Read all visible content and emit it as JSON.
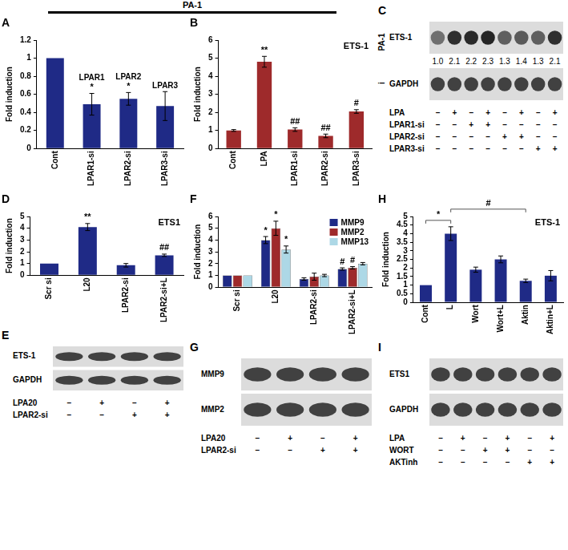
{
  "header": {
    "text": "PA-1"
  },
  "chart_data": [
    {
      "panel": "A",
      "type": "bar",
      "ylabel": "Fold induction",
      "categories": [
        "Cont",
        "LPAR1-si",
        "LPAR2-si",
        "LPAR3-si"
      ],
      "values": [
        1.0,
        0.49,
        0.55,
        0.47
      ],
      "errors": [
        0,
        0.12,
        0.07,
        0.16
      ],
      "color": "#1f2a86",
      "ylim": [
        0,
        1.2
      ],
      "yticks": [
        0,
        0.2,
        0.4,
        0.6,
        0.8,
        1,
        1.2
      ],
      "grid": false,
      "annotations": [
        {
          "category": "LPAR1-si",
          "text": "*"
        },
        {
          "category": "LPAR1-si",
          "text": "LPAR1"
        },
        {
          "category": "LPAR2-si",
          "text": "*"
        },
        {
          "category": "LPAR2-si",
          "text": "LPAR2"
        },
        {
          "category": "LPAR3-si",
          "text": "LPAR3"
        }
      ]
    },
    {
      "panel": "B",
      "type": "bar",
      "title": "ETS-1",
      "ylabel": "Fold induction",
      "categories": [
        "Cont",
        "LPA",
        "LPAR1-si",
        "LPAR2-si",
        "LPAR3-si"
      ],
      "values": [
        1.0,
        4.8,
        1.05,
        0.7,
        2.05
      ],
      "errors": [
        0.05,
        0.3,
        0.1,
        0.1,
        0.1
      ],
      "color": "#9e2a2b",
      "ylim": [
        0,
        6
      ],
      "yticks": [
        0,
        1,
        2,
        3,
        4,
        5,
        6
      ],
      "grid": false,
      "annotations": [
        {
          "category": "LPA",
          "text": "**"
        },
        {
          "category": "LPAR1-si",
          "text": "##"
        },
        {
          "category": "LPAR2-si",
          "text": "##"
        },
        {
          "category": "LPAR3-si",
          "text": "#"
        }
      ]
    },
    {
      "panel": "D",
      "type": "bar",
      "title": "ETS1",
      "ylabel": "Fold induction",
      "categories": [
        "Scr si",
        "L20",
        "LPAR2-si",
        "LPAR2-si+L"
      ],
      "values": [
        1.0,
        4.1,
        0.85,
        1.7
      ],
      "errors": [
        0,
        0.3,
        0.15,
        0.1
      ],
      "color": "#1f2a86",
      "ylim": [
        0,
        5
      ],
      "yticks": [
        0,
        1,
        2,
        3,
        4,
        5
      ],
      "grid": false,
      "annotations": [
        {
          "category": "L20",
          "text": "**"
        },
        {
          "category": "LPAR2-si+L",
          "text": "##"
        }
      ]
    },
    {
      "panel": "F",
      "type": "bar",
      "ylabel": "Fold induction",
      "categories": [
        "Scr si",
        "L20",
        "LPAR2-si",
        "LPAR2-si+L"
      ],
      "series": [
        {
          "name": "MMP9",
          "color": "#1f2a86",
          "values": [
            1,
            4.0,
            0.7,
            1.55
          ],
          "errors": [
            0,
            0.3,
            0.1,
            0.1
          ]
        },
        {
          "name": "MMP2",
          "color": "#9e2a2b",
          "values": [
            1,
            5.0,
            0.9,
            1.65
          ],
          "errors": [
            0,
            0.6,
            0.3,
            0.1
          ]
        },
        {
          "name": "MMP13",
          "color": "#add8e6",
          "values": [
            1,
            3.2,
            1.0,
            2.0
          ],
          "errors": [
            0,
            0.3,
            0.1,
            0.1
          ]
        }
      ],
      "ylim": [
        0,
        6
      ],
      "yticks": [
        0,
        1,
        2,
        3,
        4,
        5,
        6
      ],
      "grid": false,
      "legend": "top-right",
      "annotations": [
        {
          "category": "L20",
          "series": "MMP9",
          "text": "*"
        },
        {
          "category": "L20",
          "series": "MMP2",
          "text": "*"
        },
        {
          "category": "L20",
          "series": "MMP13",
          "text": "*"
        },
        {
          "category": "LPAR2-si+L",
          "series": "MMP9",
          "text": "#"
        },
        {
          "category": "LPAR2-si+L",
          "series": "MMP2",
          "text": "#"
        }
      ]
    },
    {
      "panel": "H",
      "type": "bar",
      "title": "ETS-1",
      "ylabel": "Fold induction",
      "categories": [
        "Cont",
        "L",
        "Wort",
        "Wort+L",
        "Aktin",
        "Aktin+L"
      ],
      "values": [
        1.0,
        4.0,
        1.9,
        2.5,
        1.25,
        1.55
      ],
      "errors": [
        0,
        0.4,
        0.15,
        0.2,
        0.1,
        0.3
      ],
      "color": "#1f2a86",
      "ylim": [
        0,
        5
      ],
      "yticks": [
        0,
        0.5,
        1,
        1.5,
        2,
        2.5,
        3,
        3.5,
        4,
        4.5,
        5
      ],
      "grid": false,
      "annotations": [
        {
          "from": "Cont",
          "to": "L",
          "text": "*"
        },
        {
          "from": "L",
          "to": "Aktin",
          "text": "#"
        }
      ]
    }
  ],
  "blots": [
    {
      "panel": "C",
      "side_labels": [
        "PA-1",
        "i"
      ],
      "bands": [
        {
          "label": "ETS-1",
          "values": [
            1.0,
            2.1,
            2.2,
            2.3,
            1.3,
            1.4,
            1.3,
            2.1
          ],
          "value_labels": [
            "1.0",
            "2.1",
            "2.2",
            "2.3",
            "1.3",
            "1.4",
            "1.3",
            "2.1"
          ]
        },
        {
          "label": "GAPDH"
        }
      ],
      "rows": [
        {
          "label": "LPA",
          "signs": [
            "–",
            "+",
            "–",
            "+",
            "–",
            "+",
            "–",
            "+"
          ]
        },
        {
          "label": "LPAR1-si",
          "signs": [
            "–",
            "–",
            "+",
            "+",
            "–",
            "–",
            "–",
            "–"
          ]
        },
        {
          "label": "LPAR2-si",
          "signs": [
            "–",
            "–",
            "–",
            "–",
            "+",
            "+",
            "–",
            "–"
          ]
        },
        {
          "label": "LPAR3-si",
          "signs": [
            "–",
            "–",
            "–",
            "–",
            "–",
            "–",
            "+",
            "+"
          ]
        }
      ]
    },
    {
      "panel": "E",
      "bands": [
        {
          "label": "ETS-1"
        },
        {
          "label": "GAPDH"
        }
      ],
      "rows": [
        {
          "label": "LPA20",
          "signs": [
            "–",
            "+",
            "–",
            "+"
          ]
        },
        {
          "label": "LPAR2-si",
          "signs": [
            "–",
            "–",
            "+",
            "+"
          ]
        }
      ]
    },
    {
      "panel": "G",
      "bands": [
        {
          "label": "MMP9"
        },
        {
          "label": "MMP2"
        }
      ],
      "rows": [
        {
          "label": "LPA20",
          "signs": [
            "–",
            "+",
            "–",
            "+"
          ]
        },
        {
          "label": "LPAR2-si",
          "signs": [
            "–",
            "–",
            "+",
            "+"
          ]
        }
      ]
    },
    {
      "panel": "I",
      "bands": [
        {
          "label": "ETS1"
        },
        {
          "label": "GAPDH"
        }
      ],
      "rows": [
        {
          "label": "LPA",
          "signs": [
            "–",
            "+",
            "–",
            "+",
            "–",
            "+"
          ]
        },
        {
          "label": "WORT",
          "signs": [
            "–",
            "–",
            "+",
            "+",
            "–",
            "–"
          ]
        },
        {
          "label": "AKTinh",
          "signs": [
            "–",
            "–",
            "–",
            "–",
            "+",
            "+"
          ]
        }
      ]
    }
  ]
}
